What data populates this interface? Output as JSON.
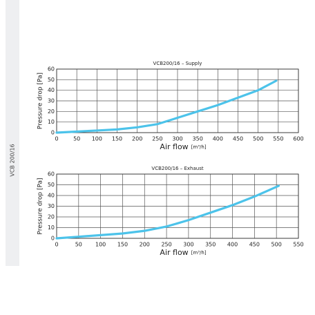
{
  "sidebar_label": "VCB 200/16",
  "chart_data": [
    {
      "type": "line",
      "title": "VCB200/16 – Supply",
      "x_label": "Air flow",
      "x_unit": "[m³/h]",
      "y_label": "Pressure drop [Pa]",
      "x": [
        0,
        50,
        100,
        150,
        200,
        250,
        300,
        350,
        400,
        450,
        500,
        545
      ],
      "values": [
        0,
        1,
        2,
        3,
        5,
        8,
        14,
        20,
        26,
        33,
        40,
        49
      ],
      "color": "#4cc3ea",
      "xlim": [
        0,
        600
      ],
      "ylim": [
        0,
        60
      ],
      "xticks": [
        0,
        50,
        100,
        150,
        200,
        250,
        300,
        350,
        400,
        450,
        500,
        550,
        600
      ],
      "yticks": [
        0,
        10,
        20,
        30,
        40,
        50,
        60
      ],
      "grid": true
    },
    {
      "type": "line",
      "title": "VCB200/16 – Exhaust",
      "x_label": "Air flow",
      "x_unit": "[m³/h]",
      "y_label": "Pressure drop [Pa]",
      "x": [
        0,
        50,
        100,
        150,
        200,
        250,
        300,
        350,
        400,
        450,
        505
      ],
      "values": [
        0,
        1.5,
        3,
        4.5,
        7,
        11,
        17,
        24,
        31,
        39,
        49
      ],
      "color": "#4cc3ea",
      "xlim": [
        0,
        550
      ],
      "ylim": [
        0,
        60
      ],
      "xticks": [
        0,
        50,
        100,
        150,
        200,
        250,
        300,
        350,
        400,
        450,
        500,
        550
      ],
      "yticks": [
        0,
        10,
        20,
        30,
        40,
        50,
        60
      ],
      "grid": true
    }
  ]
}
